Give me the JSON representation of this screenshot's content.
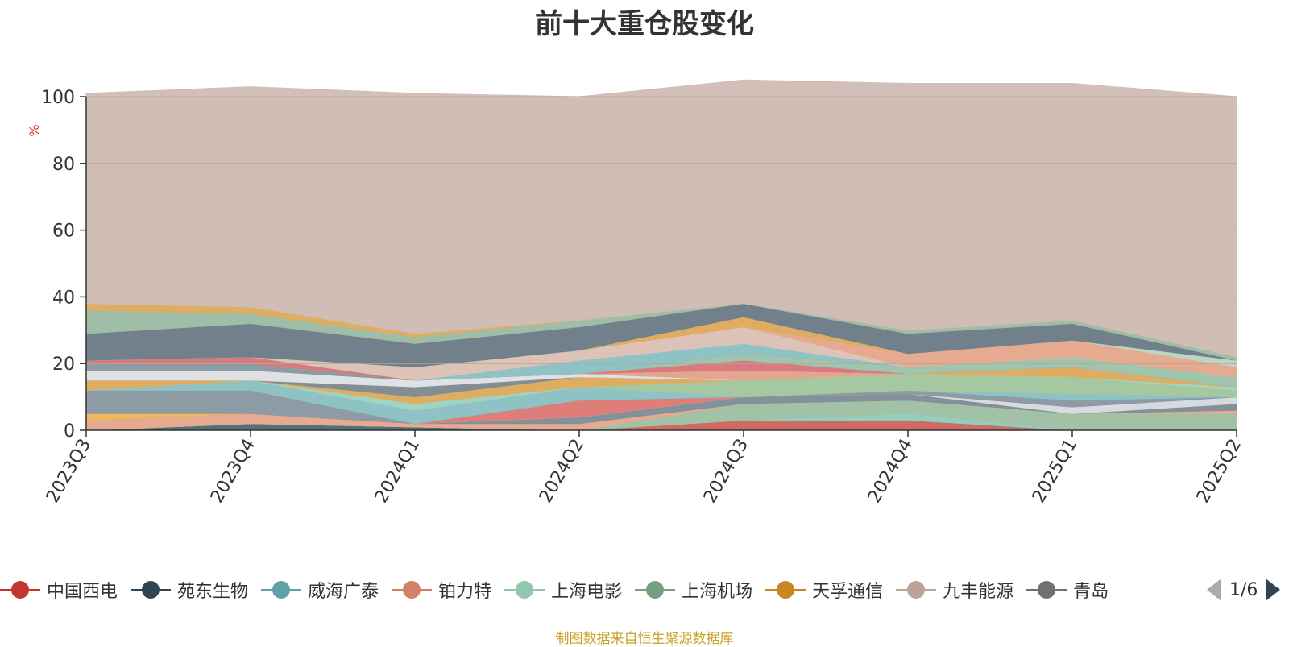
{
  "chart_data": {
    "type": "area",
    "stacked": true,
    "title": "前十大重仓股变化",
    "ylabel": "%",
    "ylim": [
      0,
      100
    ],
    "yticks": [
      0,
      20,
      40,
      60,
      80,
      100
    ],
    "categories": [
      "2023Q3",
      "2023Q4",
      "2024Q1",
      "2024Q2",
      "2024Q3",
      "2024Q4",
      "2025Q1",
      "2025Q2"
    ],
    "series": [
      {
        "color": "#d0675f",
        "values": [
          0,
          0,
          0,
          0,
          3,
          3,
          0,
          0
        ]
      },
      {
        "color": "#4e6b7a",
        "values": [
          0,
          2,
          1,
          0,
          0,
          0,
          0,
          0
        ]
      },
      {
        "color": "#8fd1c0",
        "values": [
          0,
          0,
          0,
          0,
          0,
          2,
          0,
          0
        ]
      },
      {
        "color": "#9fc3a6",
        "values": [
          0,
          0,
          0,
          0,
          5,
          4,
          5,
          5
        ]
      },
      {
        "color": "#e8a98f",
        "values": [
          3,
          3,
          1,
          2,
          0,
          0,
          0,
          1
        ]
      },
      {
        "color": "#7f8f99",
        "values": [
          0,
          0,
          0,
          2,
          2,
          2,
          0,
          2
        ]
      },
      {
        "color": "#f0b957",
        "values": [
          2,
          0,
          0,
          0,
          0,
          0,
          0,
          0
        ]
      },
      {
        "color": "#d6dde3",
        "values": [
          0,
          0,
          0,
          0,
          0,
          0,
          2,
          2
        ]
      },
      {
        "color": "#e07a76",
        "values": [
          0,
          0,
          0,
          5,
          0,
          0,
          0,
          0
        ]
      },
      {
        "color": "#8a9aa4",
        "values": [
          7,
          7,
          0,
          0,
          0,
          1,
          2,
          0
        ]
      },
      {
        "color": "#8cc3c6",
        "values": [
          0,
          3,
          4,
          4,
          0,
          0,
          2,
          0
        ]
      },
      {
        "color": "#a4c9a0",
        "values": [
          0,
          0,
          0,
          0,
          5,
          5,
          5,
          2
        ]
      },
      {
        "color": "#9ed6c2",
        "values": [
          0,
          0,
          2,
          0,
          0,
          0,
          0,
          1
        ]
      },
      {
        "color": "#e0ad5e",
        "values": [
          3,
          0,
          2,
          3,
          0,
          0,
          3,
          0
        ]
      },
      {
        "color": "#e3b98f",
        "values": [
          0,
          0,
          0,
          0,
          0,
          0,
          0,
          0
        ]
      },
      {
        "color": "#7f8c93",
        "values": [
          0,
          0,
          3,
          0,
          0,
          0,
          0,
          0
        ]
      },
      {
        "color": "#dfe4e8",
        "values": [
          3,
          3,
          2,
          1,
          0,
          0,
          0,
          0
        ]
      },
      {
        "color": "#e5a48d",
        "values": [
          0,
          0,
          0,
          0,
          3,
          0,
          0,
          0
        ]
      },
      {
        "color": "#d9777c",
        "values": [
          0,
          0,
          0,
          0,
          3,
          0,
          0,
          0
        ]
      },
      {
        "color": "#8a9aa4",
        "values": [
          2,
          2,
          0,
          0,
          0,
          0,
          0,
          0
        ]
      },
      {
        "color": "#9fc5ac",
        "values": [
          0,
          0,
          0,
          0,
          2,
          2,
          3,
          3
        ]
      },
      {
        "color": "#d9777c",
        "values": [
          1,
          2,
          0,
          0,
          0,
          0,
          0,
          0
        ]
      },
      {
        "color": "#8cc3c6",
        "values": [
          0,
          0,
          0,
          4,
          3,
          0,
          0,
          0
        ]
      },
      {
        "color": "#dec3b8",
        "values": [
          0,
          0,
          4,
          3,
          5,
          0,
          0,
          0
        ]
      },
      {
        "color": "#e8a98f",
        "values": [
          0,
          0,
          0,
          0,
          0,
          4,
          5,
          3
        ]
      },
      {
        "color": "#e0ad5e",
        "values": [
          0,
          0,
          0,
          0,
          3,
          0,
          0,
          0
        ]
      },
      {
        "color": "#bdd7c8",
        "values": [
          0,
          0,
          0,
          0,
          0,
          0,
          0,
          2
        ]
      },
      {
        "color": "#6c7d88",
        "values": [
          8,
          10,
          7,
          7,
          4,
          6,
          5,
          0
        ]
      },
      {
        "color": "#9dbea7",
        "values": [
          7,
          3,
          2,
          2,
          0,
          1,
          1,
          1
        ]
      },
      {
        "color": "#e0ad5e",
        "values": [
          2,
          2,
          1,
          0,
          0,
          0,
          0,
          0
        ]
      },
      {
        "color": "#d0bdb5",
        "values": [
          63,
          66,
          72,
          67,
          67,
          74,
          71,
          78
        ]
      }
    ],
    "legend": [
      {
        "name": "中国西电",
        "color": "#c23531"
      },
      {
        "name": "苑东生物",
        "color": "#2f4554"
      },
      {
        "name": "威海广泰",
        "color": "#61a0a8"
      },
      {
        "name": "铂力特",
        "color": "#d48265"
      },
      {
        "name": "上海电影",
        "color": "#91c7ae"
      },
      {
        "name": "上海机场",
        "color": "#749f83"
      },
      {
        "name": "天孚通信",
        "color": "#ca8622"
      },
      {
        "name": "九丰能源",
        "color": "#bda29a"
      },
      {
        "name": "青岛",
        "color": "#6e7074"
      }
    ],
    "legend_page": "1/6",
    "source_note": "制图数据来自恒生聚源数据库"
  },
  "background": "#ffffff"
}
